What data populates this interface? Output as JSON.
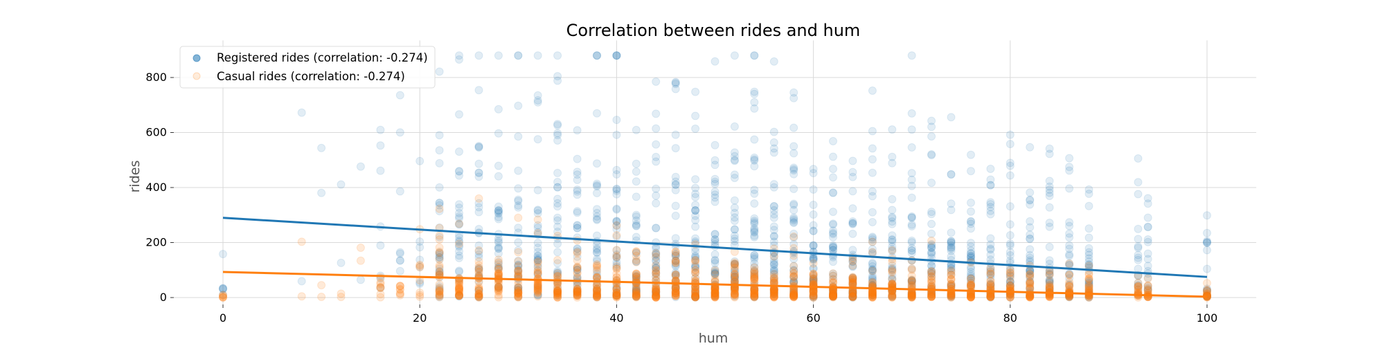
{
  "chart_data": {
    "type": "scatter",
    "title": "Correlation between rides and hum",
    "xlabel": "hum",
    "ylabel": "rides",
    "xlim": [
      -5,
      105
    ],
    "ylim": [
      -25,
      935
    ],
    "x_ticks": [
      0,
      20,
      40,
      60,
      80,
      100
    ],
    "y_ticks": [
      0,
      200,
      400,
      600,
      800
    ],
    "grid": true,
    "legend_position": "top-left",
    "series": [
      {
        "name": "Registered rides (correlation: -0.274)",
        "color": "#1f77b4",
        "trend_line": {
          "x": [
            0,
            100
          ],
          "y": [
            290,
            75
          ]
        },
        "scatter_summary": {
          "note_x_range": [
            0,
            100
          ],
          "dense_y_max": 400,
          "sparse_y_max": 880
        }
      },
      {
        "name": "Casual rides (correlation: -0.274)",
        "color": "#ff7f0e",
        "trend_line": {
          "x": [
            0,
            100
          ],
          "y": [
            93,
            3
          ]
        },
        "scatter_summary": {
          "note_x_range": [
            0,
            100
          ],
          "dense_y_max": 150,
          "sparse_y_max": 360
        }
      }
    ]
  }
}
